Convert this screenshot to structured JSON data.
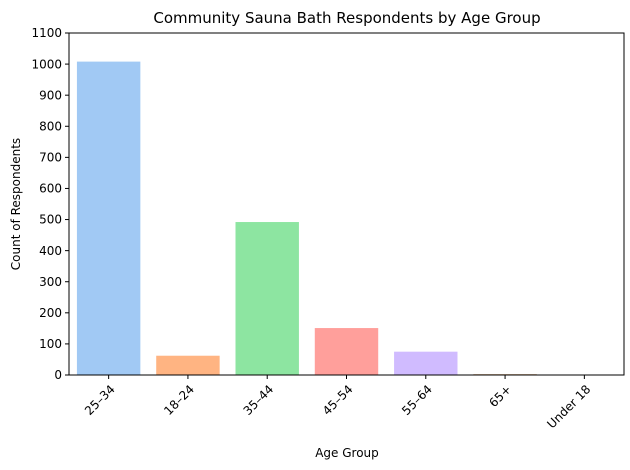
{
  "chart_data": {
    "type": "bar",
    "title": "Community Sauna Bath Respondents by Age Group",
    "xlabel": "Age Group",
    "ylabel": "Count of Respondents",
    "categories": [
      "25–34",
      "18–24",
      "35–44",
      "45–54",
      "55–64",
      "65+",
      "Under 18"
    ],
    "values": [
      1008,
      62,
      492,
      151,
      75,
      3,
      1
    ],
    "colors": [
      "#a1c9f4",
      "#ffb482",
      "#8de5a1",
      "#ff9f9b",
      "#d0bbff",
      "#debb9b",
      "#fab0e4"
    ],
    "ylim": [
      0,
      1100
    ],
    "yticks": [
      0,
      100,
      200,
      300,
      400,
      500,
      600,
      700,
      800,
      900,
      1000,
      1100
    ],
    "grid": false,
    "legend": "none"
  }
}
